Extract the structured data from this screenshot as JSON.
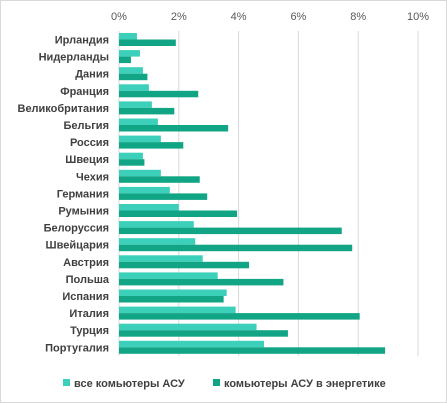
{
  "chart_data": {
    "type": "bar",
    "orientation": "horizontal",
    "categories": [
      "Ирландия",
      "Нидерланды",
      "Дания",
      "Франция",
      "Великобритания",
      "Бельгия",
      "Россия",
      "Швеция",
      "Чехия",
      "Германия",
      "Румыния",
      "Белоруссия",
      "Швейцария",
      "Австрия",
      "Польша",
      "Испания",
      "Италия",
      "Турция",
      "Португалия"
    ],
    "series": [
      {
        "name": "все комьютеры АСУ",
        "color": "#3ccfb9",
        "values": [
          0.6,
          0.7,
          0.8,
          1.0,
          1.1,
          1.3,
          1.4,
          0.8,
          1.4,
          1.7,
          2.0,
          2.5,
          2.55,
          2.8,
          3.3,
          3.6,
          3.9,
          4.6,
          4.85
        ]
      },
      {
        "name": "комьютеры АСУ в энергетике",
        "color": "#12a585",
        "values": [
          1.9,
          0.4,
          0.95,
          2.65,
          1.85,
          3.65,
          2.15,
          0.85,
          2.7,
          2.95,
          3.95,
          7.45,
          7.8,
          4.35,
          5.5,
          3.5,
          8.05,
          5.65,
          8.9
        ]
      }
    ],
    "xlim": [
      0,
      10
    ],
    "x_ticks": [
      "0%",
      "2%",
      "4%",
      "6%",
      "8%",
      "10%"
    ],
    "axis_position": "top",
    "grid": true,
    "legend_position": "bottom"
  }
}
